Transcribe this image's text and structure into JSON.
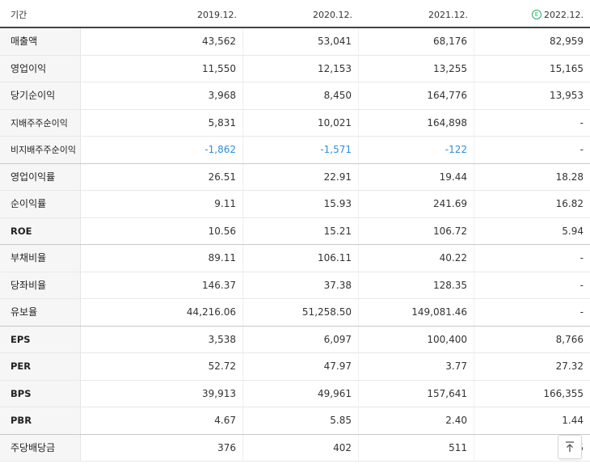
{
  "header": {
    "label": "기간",
    "periods": [
      "2019.12.",
      "2020.12.",
      "2021.12.",
      "2022.12."
    ],
    "estimate_icon": "E"
  },
  "rows": [
    {
      "label": "매출액",
      "values": [
        "43,562",
        "53,041",
        "68,176",
        "82,959"
      ]
    },
    {
      "label": "영업이익",
      "values": [
        "11,550",
        "12,153",
        "13,255",
        "15,165"
      ]
    },
    {
      "label": "당기순이익",
      "values": [
        "3,968",
        "8,450",
        "164,776",
        "13,953"
      ]
    },
    {
      "label": "지배주주순이익",
      "values": [
        "5,831",
        "10,021",
        "164,898",
        "-"
      ]
    },
    {
      "label": "비지배주주순이익",
      "values": [
        "-1,862",
        "-1,571",
        "-122",
        "-"
      ]
    },
    {
      "label": "영업이익률",
      "values": [
        "26.51",
        "22.91",
        "19.44",
        "18.28"
      ]
    },
    {
      "label": "순이익률",
      "values": [
        "9.11",
        "15.93",
        "241.69",
        "16.82"
      ]
    },
    {
      "label": "ROE",
      "values": [
        "10.56",
        "15.21",
        "106.72",
        "5.94"
      ]
    },
    {
      "label": "부채비율",
      "values": [
        "89.11",
        "106.11",
        "40.22",
        "-"
      ]
    },
    {
      "label": "당좌비율",
      "values": [
        "146.37",
        "37.38",
        "128.35",
        "-"
      ]
    },
    {
      "label": "유보율",
      "values": [
        "44,216.06",
        "51,258.50",
        "149,081.46",
        "-"
      ]
    },
    {
      "label": "EPS",
      "values": [
        "3,538",
        "6,097",
        "100,400",
        "8,766"
      ]
    },
    {
      "label": "PER",
      "values": [
        "52.72",
        "47.97",
        "3.77",
        "27.32"
      ]
    },
    {
      "label": "BPS",
      "values": [
        "39,913",
        "49,961",
        "157,641",
        "166,355"
      ]
    },
    {
      "label": "PBR",
      "values": [
        "4.67",
        "5.85",
        "2.40",
        "1.44"
      ]
    },
    {
      "label": "주당배당금",
      "values": [
        "376",
        "402",
        "511",
        "5"
      ]
    }
  ],
  "colors": {
    "negative": "#2e8fd6",
    "estimate": "#2fae6a",
    "label_bg": "#f6f6f6"
  },
  "icons": {
    "scroll_top": "arrow-up-to-top-icon"
  }
}
